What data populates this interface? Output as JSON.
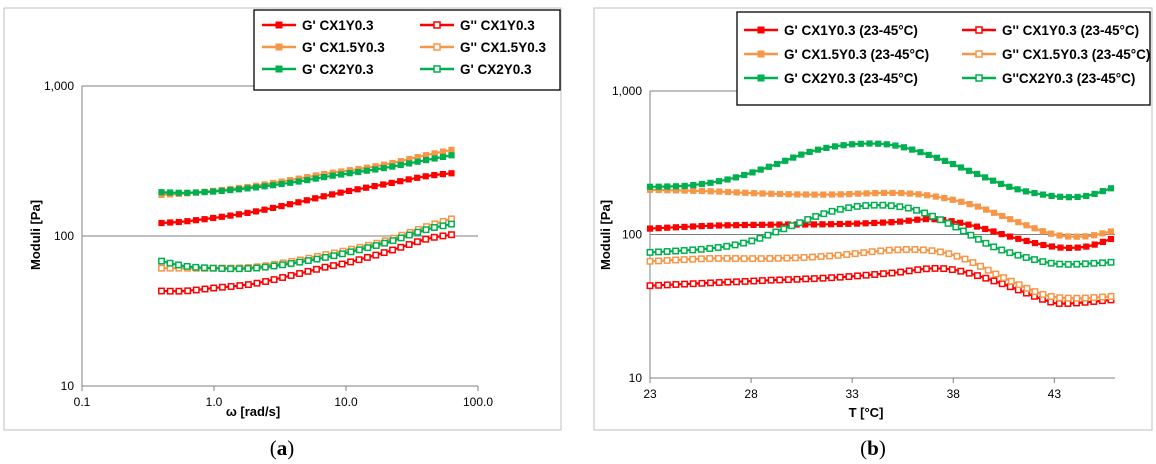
{
  "panel_labels": [
    {
      "open": "(",
      "letter": "a",
      "close": ")"
    },
    {
      "open": "(",
      "letter": "b",
      "close": ")"
    }
  ],
  "colors": {
    "red": "#ff0000",
    "orange": "#f79646",
    "green": "#00b050"
  },
  "chart_data": [
    {
      "type": "line",
      "xscale": "log",
      "yscale": "log",
      "xlabel": "ω [rad/s]",
      "ylabel": "Moduli [Pa]",
      "xlim": [
        0.1,
        100
      ],
      "ylim": [
        10,
        1000
      ],
      "xticks": [
        {
          "v": 0.1,
          "label": "0.1"
        },
        {
          "v": 1,
          "label": "1.0"
        },
        {
          "v": 10,
          "label": "10.0"
        },
        {
          "v": 100,
          "label": "100.0"
        }
      ],
      "yticks": [
        {
          "v": 10,
          "label": "10"
        },
        {
          "v": 100,
          "label": "100"
        },
        {
          "v": 1000,
          "label": "1,000"
        }
      ],
      "grid": "horizontal",
      "legend_position": "top-right",
      "legend_columns": 2,
      "series": [
        {
          "name": "G' CX1Y0.3",
          "color": "#ff0000",
          "marker": "filled",
          "points": [
            [
              0.4,
              122
            ],
            [
              0.6,
              125
            ],
            [
              1,
              132
            ],
            [
              2,
              145
            ],
            [
              4,
              165
            ],
            [
              7,
              185
            ],
            [
              10,
              198
            ],
            [
              20,
              222
            ],
            [
              40,
              250
            ],
            [
              63,
              262
            ]
          ]
        },
        {
          "name": "G'' CX1Y0.3",
          "color": "#ff0000",
          "marker": "open",
          "points": [
            [
              0.4,
              43
            ],
            [
              0.6,
              43
            ],
            [
              1,
              45
            ],
            [
              2,
              48
            ],
            [
              4,
              55
            ],
            [
              7,
              62
            ],
            [
              10,
              66
            ],
            [
              20,
              78
            ],
            [
              40,
              95
            ],
            [
              63,
              102
            ]
          ]
        },
        {
          "name": "G' CX1.5Y0.3",
          "color": "#f79646",
          "marker": "filled",
          "points": [
            [
              0.4,
              188
            ],
            [
              0.6,
              192
            ],
            [
              1,
              200
            ],
            [
              2,
              215
            ],
            [
              4,
              238
            ],
            [
              7,
              260
            ],
            [
              10,
              272
            ],
            [
              20,
              300
            ],
            [
              40,
              345
            ],
            [
              63,
              375
            ]
          ]
        },
        {
          "name": "G'' CX1.5Y0.3",
          "color": "#f79646",
          "marker": "open",
          "points": [
            [
              0.4,
              61
            ],
            [
              0.6,
              61
            ],
            [
              1,
              61
            ],
            [
              2,
              62
            ],
            [
              4,
              68
            ],
            [
              7,
              75
            ],
            [
              10,
              80
            ],
            [
              20,
              93
            ],
            [
              40,
              115
            ],
            [
              63,
              130
            ]
          ]
        },
        {
          "name": "G' CX2Y0.3",
          "color": "#00b050",
          "marker": "filled",
          "points": [
            [
              0.4,
              196
            ],
            [
              0.6,
              194
            ],
            [
              1,
              198
            ],
            [
              2,
              210
            ],
            [
              4,
              228
            ],
            [
              7,
              248
            ],
            [
              10,
              260
            ],
            [
              20,
              285
            ],
            [
              40,
              320
            ],
            [
              63,
              345
            ]
          ]
        },
        {
          "name": "G' CX2Y0.3",
          "color": "#00b050",
          "marker": "open",
          "points": [
            [
              0.4,
              68
            ],
            [
              0.6,
              63
            ],
            [
              1,
              61
            ],
            [
              2,
              61
            ],
            [
              4,
              66
            ],
            [
              7,
              72
            ],
            [
              10,
              77
            ],
            [
              20,
              90
            ],
            [
              40,
              110
            ],
            [
              63,
              120
            ]
          ]
        }
      ]
    },
    {
      "type": "line",
      "xscale": "linear",
      "yscale": "log",
      "xlabel": "T [°C]",
      "ylabel": "Moduli [Pa]",
      "xlim": [
        23,
        46
      ],
      "ylim": [
        10,
        1000
      ],
      "xticks": [
        {
          "v": 23,
          "label": "23"
        },
        {
          "v": 28,
          "label": "28"
        },
        {
          "v": 33,
          "label": "33"
        },
        {
          "v": 38,
          "label": "38"
        },
        {
          "v": 43,
          "label": "43"
        }
      ],
      "yticks": [
        {
          "v": 10,
          "label": "10"
        },
        {
          "v": 100,
          "label": "100"
        },
        {
          "v": 1000,
          "label": "1,000"
        }
      ],
      "grid": "horizontal",
      "legend_position": "top-right",
      "legend_columns": 2,
      "series": [
        {
          "name": "G' CX1Y0.3 (23-45°C)",
          "color": "#ff0000",
          "marker": "filled",
          "points": [
            [
              23,
              110
            ],
            [
              26,
              115
            ],
            [
              29,
              117
            ],
            [
              32,
              118
            ],
            [
              35,
              122
            ],
            [
              37,
              128
            ],
            [
              39,
              115
            ],
            [
              41,
              95
            ],
            [
              43,
              82
            ],
            [
              44.5,
              82
            ],
            [
              45.8,
              93
            ]
          ]
        },
        {
          "name": "G'' CX1Y0.3 (23-45°C)",
          "color": "#ff0000",
          "marker": "open",
          "points": [
            [
              23,
              44
            ],
            [
              26,
              46
            ],
            [
              29,
              48
            ],
            [
              32,
              50
            ],
            [
              35,
              54
            ],
            [
              37,
              58
            ],
            [
              38.5,
              55
            ],
            [
              40.5,
              45
            ],
            [
              42.5,
              35
            ],
            [
              43.5,
              33
            ],
            [
              45.8,
              35
            ]
          ]
        },
        {
          "name": "G' CX1.5Y0.3 (23-45°C)",
          "color": "#f79646",
          "marker": "filled",
          "points": [
            [
              23,
              205
            ],
            [
              26,
              200
            ],
            [
              29,
              192
            ],
            [
              32,
              190
            ],
            [
              35,
              195
            ],
            [
              37,
              185
            ],
            [
              39,
              160
            ],
            [
              41,
              125
            ],
            [
              43,
              100
            ],
            [
              44.5,
              97
            ],
            [
              45.8,
              105
            ]
          ]
        },
        {
          "name": "G'' CX1.5Y0.3 (23-45°C)",
          "color": "#f79646",
          "marker": "open",
          "points": [
            [
              23,
              65
            ],
            [
              26,
              68
            ],
            [
              29,
              68
            ],
            [
              32,
              71
            ],
            [
              35,
              78
            ],
            [
              37,
              77
            ],
            [
              38.5,
              68
            ],
            [
              40.5,
              50
            ],
            [
              42.5,
              38
            ],
            [
              44,
              36
            ],
            [
              45.8,
              37
            ]
          ]
        },
        {
          "name": "G' CX2Y0.3 (23-45°C)",
          "color": "#00b050",
          "marker": "filled",
          "points": [
            [
              23,
              215
            ],
            [
              25,
              220
            ],
            [
              27,
              245
            ],
            [
              29,
              300
            ],
            [
              31,
              380
            ],
            [
              33,
              425
            ],
            [
              35,
              420
            ],
            [
              37,
              350
            ],
            [
              39,
              270
            ],
            [
              41,
              210
            ],
            [
              43,
              185
            ],
            [
              44.5,
              185
            ],
            [
              45.8,
              210
            ]
          ]
        },
        {
          "name": "G''CX2Y0.3 (23-45°C)",
          "color": "#00b050",
          "marker": "open",
          "points": [
            [
              23,
              75
            ],
            [
              26,
              80
            ],
            [
              28,
              90
            ],
            [
              30,
              115
            ],
            [
              32,
              145
            ],
            [
              34,
              160
            ],
            [
              36,
              150
            ],
            [
              38,
              115
            ],
            [
              40,
              82
            ],
            [
              42,
              67
            ],
            [
              43.5,
              62
            ],
            [
              45.8,
              64
            ]
          ]
        }
      ]
    }
  ]
}
